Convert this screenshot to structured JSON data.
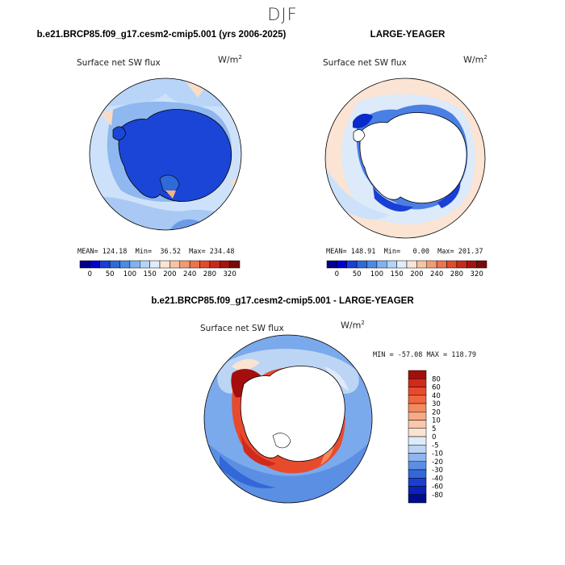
{
  "figure": {
    "season": "DJF",
    "variable": "Surface net SW flux",
    "units_base": "W/m",
    "units_exp": "2"
  },
  "panel_left": {
    "title": "b.e21.BRCP85.f09_g17.cesm2-cmip5.001 (yrs 2006-2025)",
    "stats": "MEAN= 124.18  Min=  36.52  Max= 234.48"
  },
  "panel_right": {
    "title": "LARGE-YEAGER",
    "stats": "MEAN= 148.91  Min=   0.00  Max= 201.37"
  },
  "panel_diff": {
    "title": "b.e21.BRCP85.f09_g17.cesm2-cmip5.001 - LARGE-YEAGER",
    "stats": "MIN = -57.08 MAX = 118.79"
  },
  "colorbar_top": {
    "labels": [
      "0",
      "50",
      "100",
      "150",
      "200",
      "240",
      "280",
      "320"
    ],
    "colors": [
      "#00008b",
      "#0000cd",
      "#1a3fd6",
      "#2f6ad9",
      "#4a8be6",
      "#7fb2f0",
      "#b3d4f7",
      "#e0ecfb",
      "#fbe4d4",
      "#f8c3a4",
      "#f29a73",
      "#ec7350",
      "#e04a2d",
      "#c7291b",
      "#a5140f",
      "#7a0a08"
    ]
  },
  "colorbar_diff": {
    "labels": [
      "80",
      "60",
      "40",
      "30",
      "20",
      "10",
      "5",
      "0",
      "-5",
      "-10",
      "-20",
      "-30",
      "-40",
      "-60",
      "-80"
    ],
    "colors": [
      "#a50e0e",
      "#d12a1c",
      "#e84a2c",
      "#f0663d",
      "#f48a5e",
      "#f7aa85",
      "#f9c7aa",
      "#fbe3d2",
      "#deebfa",
      "#bcd5f5",
      "#8db6ee",
      "#5b8fe3",
      "#3468d8",
      "#1a3fcf",
      "#0a22b8",
      "#000c8a"
    ]
  }
}
